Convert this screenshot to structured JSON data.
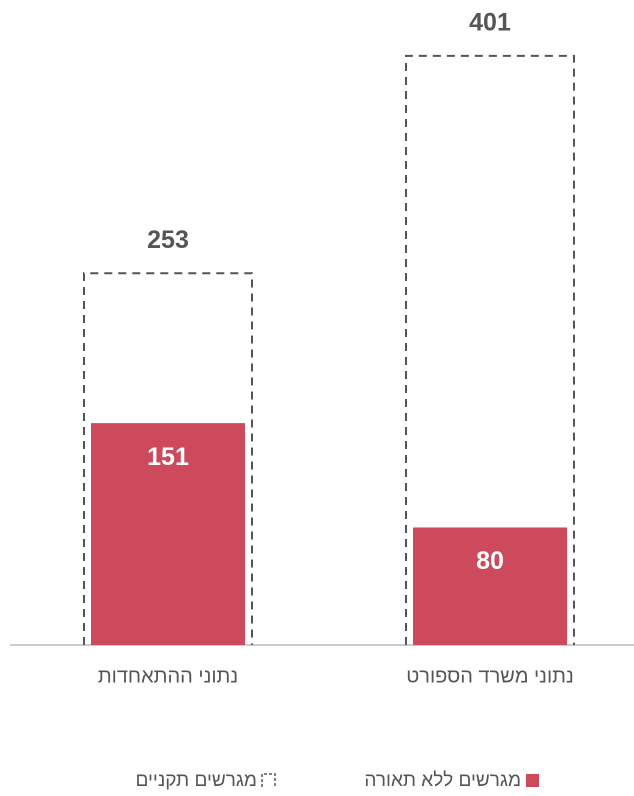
{
  "chart_data": {
    "type": "bar",
    "categories": [
      "נתוני ההתאחדות",
      "נתוני משרד הספורט"
    ],
    "series": [
      {
        "name": "מגרשים תקניים",
        "color": "#555555",
        "style": "dashed",
        "values": [
          253,
          401
        ]
      },
      {
        "name": "מגרשים ללא תאורה",
        "color": "#cc4a5c",
        "style": "filled",
        "values": [
          151,
          80
        ]
      }
    ],
    "ylim": [
      0,
      439
    ]
  }
}
